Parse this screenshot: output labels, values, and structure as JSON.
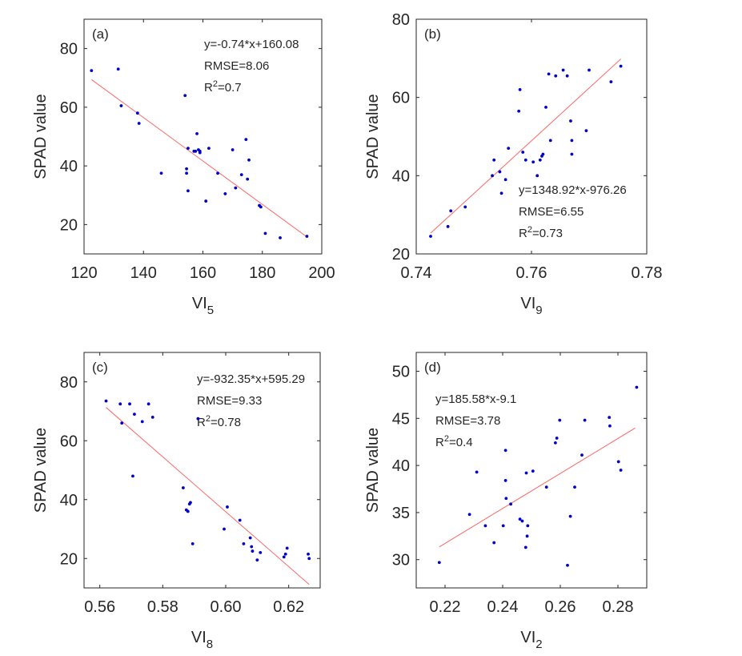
{
  "chart_data": [
    {
      "type": "scatter",
      "panel_label": "(a)",
      "xlabel": "VI",
      "xlabel_sub": "5",
      "ylabel": "SPAD value",
      "xlim": [
        120,
        200
      ],
      "ylim": [
        10,
        90
      ],
      "xticks": [
        "120",
        "140",
        "160",
        "180",
        "200"
      ],
      "yticks": [
        "20",
        "40",
        "60",
        "80"
      ],
      "xtick_values": [
        120,
        140,
        160,
        180,
        200
      ],
      "ytick_values": [
        20,
        40,
        60,
        80
      ],
      "annotations": {
        "equation": "y=-0.74*x+160.08",
        "rmse": "RMSE=8.06",
        "r2_prefix": "R",
        "r2_sup": "2",
        "r2_value": "=0.7"
      },
      "fit_line": {
        "slope": -0.74,
        "intercept": 160.08,
        "x_range": [
          122.5,
          195
        ]
      },
      "point_color": "#0000cc",
      "line_color": "#ff6666",
      "x": [
        122.5,
        131.5,
        132.5,
        138,
        138.5,
        146,
        154,
        154.5,
        154.5,
        155,
        155,
        157,
        157.5,
        158,
        158.5,
        159,
        159,
        161,
        162,
        165,
        167.5,
        170,
        171,
        173,
        174.5,
        175,
        175.5,
        179,
        179.5,
        181,
        186,
        195
      ],
      "y": [
        72.5,
        73,
        60.5,
        58,
        54.5,
        37.5,
        64,
        39,
        37.5,
        31.5,
        46,
        45,
        45,
        51,
        45.5,
        44.5,
        45,
        28,
        46,
        37.5,
        30.5,
        45.5,
        32.5,
        37,
        49,
        35.5,
        42,
        26.5,
        26,
        17,
        15.5,
        16
      ]
    },
    {
      "type": "scatter",
      "panel_label": "(b)",
      "xlabel": "VI",
      "xlabel_sub": "9",
      "ylabel": "SPAD value",
      "xlim": [
        0.74,
        0.78
      ],
      "ylim": [
        20,
        80
      ],
      "xticks": [
        "0.74",
        "0.76",
        "0.78"
      ],
      "yticks": [
        "20",
        "40",
        "60",
        "80"
      ],
      "xtick_values": [
        0.74,
        0.76,
        0.78
      ],
      "ytick_values": [
        20,
        40,
        60,
        80
      ],
      "annotations": {
        "equation": "y=1348.92*x-976.26",
        "rmse": "RMSE=6.55",
        "r2_prefix": "R",
        "r2_sup": "2",
        "r2_value": "=0.73"
      },
      "fit_line": {
        "slope": 1348.92,
        "intercept": -976.26,
        "x_range": [
          0.7425,
          0.7755
        ]
      },
      "point_color": "#0000cc",
      "line_color": "#ff6666",
      "x": [
        0.7425,
        0.7455,
        0.746,
        0.7485,
        0.7532,
        0.7535,
        0.7545,
        0.7548,
        0.7555,
        0.756,
        0.7578,
        0.758,
        0.7585,
        0.759,
        0.7603,
        0.761,
        0.7615,
        0.7618,
        0.762,
        0.7625,
        0.763,
        0.7633,
        0.7642,
        0.7655,
        0.7662,
        0.7668,
        0.767,
        0.767,
        0.7695,
        0.77,
        0.7738,
        0.7755
      ],
      "y": [
        24.5,
        27,
        31,
        32,
        40,
        44,
        41,
        35.5,
        39,
        47,
        56.5,
        62,
        46,
        44,
        43.5,
        40,
        44,
        45,
        45.5,
        57.5,
        66,
        49,
        65.5,
        67,
        65.5,
        54,
        45.5,
        49,
        51.5,
        67,
        64,
        68
      ]
    },
    {
      "type": "scatter",
      "panel_label": "(c)",
      "xlabel": "VI",
      "xlabel_sub": "8",
      "ylabel": "SPAD value",
      "xlim": [
        0.555,
        0.63
      ],
      "ylim": [
        10,
        90
      ],
      "xticks": [
        "0.56",
        "0.58",
        "0.60",
        "0.62"
      ],
      "yticks": [
        "20",
        "40",
        "60",
        "80"
      ],
      "xtick_values": [
        0.56,
        0.58,
        0.6,
        0.62
      ],
      "ytick_values": [
        20,
        40,
        60,
        80
      ],
      "annotations": {
        "equation": "y=-932.35*x+595.29",
        "rmse": "RMSE=9.33",
        "r2_prefix": "R",
        "r2_sup": "2",
        "r2_value": "=0.78"
      },
      "fit_line": {
        "slope": -932.35,
        "intercept": 595.29,
        "x_range": [
          0.562,
          0.6265
        ]
      },
      "point_color": "#0000cc",
      "line_color": "#ff6666",
      "x": [
        0.562,
        0.5665,
        0.567,
        0.5695,
        0.5705,
        0.571,
        0.5735,
        0.5755,
        0.5768,
        0.5865,
        0.5875,
        0.588,
        0.5885,
        0.5888,
        0.5895,
        0.5912,
        0.5995,
        0.6005,
        0.6045,
        0.6057,
        0.6078,
        0.6082,
        0.6085,
        0.61,
        0.611,
        0.6185,
        0.619,
        0.6195,
        0.6262,
        0.6265
      ],
      "y": [
        73.5,
        72.5,
        66,
        72.5,
        48,
        69,
        66.5,
        72.5,
        68,
        44,
        36.5,
        36,
        38.5,
        39,
        25,
        67.5,
        30,
        37.5,
        33,
        25,
        27,
        24,
        22.5,
        19.5,
        22,
        20.5,
        21.5,
        23.5,
        21.5,
        20
      ]
    },
    {
      "type": "scatter",
      "panel_label": "(d)",
      "xlabel": "VI",
      "xlabel_sub": "2",
      "ylabel": "SPAD value",
      "xlim": [
        0.21,
        0.29
      ],
      "ylim": [
        27,
        52
      ],
      "xticks": [
        "0.22",
        "0.24",
        "0.26",
        "0.28"
      ],
      "yticks": [
        "30",
        "35",
        "40",
        "45",
        "50"
      ],
      "xtick_values": [
        0.22,
        0.24,
        0.26,
        0.28
      ],
      "ytick_values": [
        30,
        35,
        40,
        45,
        50
      ],
      "annotations": {
        "equation": "y=185.58*x-9.1",
        "rmse": "RMSE=3.78",
        "r2_prefix": "R",
        "r2_sup": "2",
        "r2_value": "=0.4"
      },
      "fit_line": {
        "slope": 185.58,
        "intercept": -9.1,
        "x_range": [
          0.218,
          0.286
        ]
      },
      "point_color": "#0000cc",
      "line_color": "#ff6666",
      "x": [
        0.218,
        0.2285,
        0.231,
        0.234,
        0.237,
        0.2402,
        0.241,
        0.241,
        0.2412,
        0.2428,
        0.246,
        0.2468,
        0.248,
        0.2482,
        0.2485,
        0.2487,
        0.2505,
        0.2552,
        0.2583,
        0.2588,
        0.2598,
        0.2625,
        0.2635,
        0.265,
        0.2675,
        0.2685,
        0.277,
        0.2772,
        0.2802,
        0.281,
        0.2865
      ],
      "y": [
        29.7,
        34.8,
        39.3,
        33.6,
        31.8,
        33.6,
        41.6,
        38.4,
        36.5,
        35.9,
        34.3,
        34.1,
        31.3,
        39.2,
        32.5,
        33.6,
        39.4,
        37.7,
        42.4,
        42.9,
        44.8,
        29.4,
        34.6,
        37.7,
        41.1,
        44.8,
        45.1,
        44.2,
        40.4,
        39.5,
        48.3
      ]
    }
  ]
}
